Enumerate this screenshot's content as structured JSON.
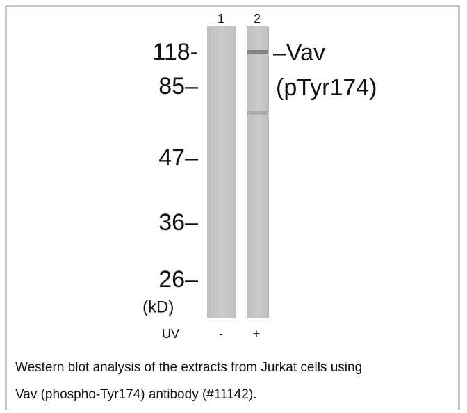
{
  "lanes": [
    "1",
    "2"
  ],
  "markers": [
    "118-",
    "85–",
    "47–",
    "36–",
    "26–"
  ],
  "unit": "(kD)",
  "band_label": [
    "–Vav",
    "(pTyr174)"
  ],
  "treatment": {
    "label": "UV",
    "lanes": [
      "-",
      "+"
    ]
  },
  "caption": [
    "Western blot analysis of the extracts from Jurkat cells using",
    "Vav (phospho-Tyr174) antibody (#11142)."
  ]
}
